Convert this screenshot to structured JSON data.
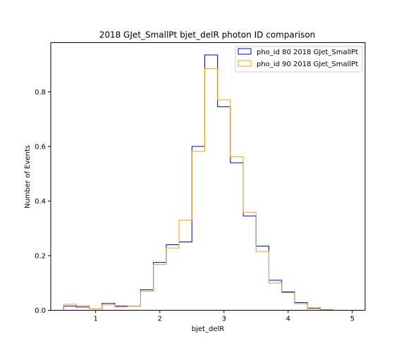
{
  "chart_data": {
    "type": "step-histogram",
    "title": "2018 GJet_SmallPt bjet_delR photon ID comparison",
    "xlabel": "bjet_delR",
    "ylabel": "Number of Events",
    "xlim": [
      0.3,
      5.2
    ],
    "ylim": [
      0,
      0.98
    ],
    "xticks": [
      1,
      2,
      3,
      4,
      5
    ],
    "yticks": [
      0.0,
      0.2,
      0.4,
      0.6,
      0.8
    ],
    "ytick_labels": [
      "0.0",
      "0.2",
      "0.4",
      "0.6",
      "0.8"
    ],
    "bin_edges": [
      0.5,
      0.7,
      0.9,
      1.1,
      1.3,
      1.5,
      1.7,
      1.9,
      2.1,
      2.3,
      2.5,
      2.7,
      2.9,
      3.1,
      3.3,
      3.5,
      3.7,
      3.9,
      4.1,
      4.3,
      4.5,
      4.7,
      4.9,
      5.0
    ],
    "legend_position": "upper right",
    "grid": false,
    "series": [
      {
        "name": "pho_id 80 2018 GJet_SmallPt",
        "color": "#0000cc",
        "values": [
          0.015,
          0.012,
          0.005,
          0.025,
          0.015,
          0.015,
          0.075,
          0.175,
          0.24,
          0.25,
          0.6,
          0.935,
          0.745,
          0.54,
          0.345,
          0.235,
          0.11,
          0.067,
          0.028,
          0.008,
          0.002,
          0.0,
          0.0
        ]
      },
      {
        "name": "pho_id 90 2018 GJet_SmallPt",
        "color": "#f0a010",
        "values": [
          0.022,
          0.017,
          0.005,
          0.02,
          0.012,
          0.015,
          0.07,
          0.168,
          0.228,
          0.33,
          0.582,
          0.885,
          0.77,
          0.562,
          0.358,
          0.215,
          0.1,
          0.064,
          0.024,
          0.006,
          0.002,
          0.0,
          0.0
        ]
      }
    ]
  }
}
